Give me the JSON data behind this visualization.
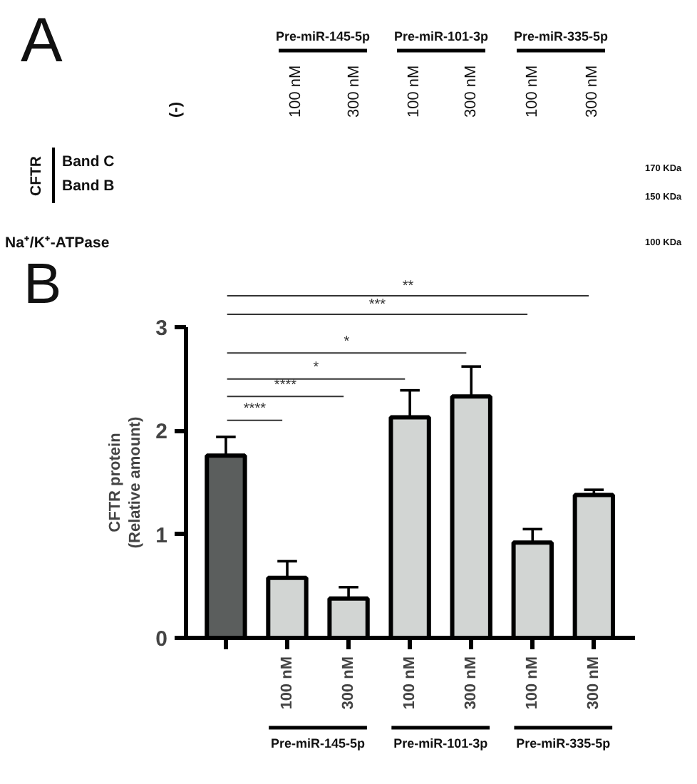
{
  "chart_data": {
    "type": "bar",
    "categories": [
      null,
      "100 nM",
      "300 nM",
      "100 nM",
      "300 nM",
      "100 nM",
      "300 nM"
    ],
    "values": [
      1.76,
      0.58,
      0.38,
      2.13,
      2.33,
      0.92,
      1.38
    ],
    "colors": [
      "#5b5e5d",
      "#d2d5d3",
      "#d2d5d3",
      "#d2d5d3",
      "#d2d5d3",
      "#d2d5d3",
      "#d2d5d3"
    ],
    "errors": [
      [
        1.76,
        1.94
      ],
      [
        0.58,
        0.74
      ],
      [
        0.38,
        0.49
      ],
      [
        2.13,
        2.39
      ],
      [
        2.33,
        2.62
      ],
      [
        0.92,
        1.05
      ],
      [
        1.38,
        1.43
      ]
    ],
    "ylabel": "CFTR protein\n(Relative amount)",
    "ylim": [
      0,
      3
    ],
    "yticks": [
      0,
      1,
      2,
      3
    ],
    "annotations": [
      "A",
      "(-)",
      "Pre-miR-145-5p",
      "Pre-miR-101-3p",
      "Pre-miR-335-5p",
      "100 nM",
      "300 nM",
      "100 nM",
      "300 nM",
      "100 nM",
      "300 nM",
      "CFTR",
      "Band C",
      "Band B",
      "170 KDa",
      "150 KDa",
      "Na⁺/K⁺-ATPase",
      "100 KDa",
      "B",
      "****",
      "****",
      "*",
      "*",
      "***",
      "**",
      "Pre-miR-145-5p",
      "Pre-miR-101-3p",
      "Pre-miR-335-5p"
    ]
  }
}
